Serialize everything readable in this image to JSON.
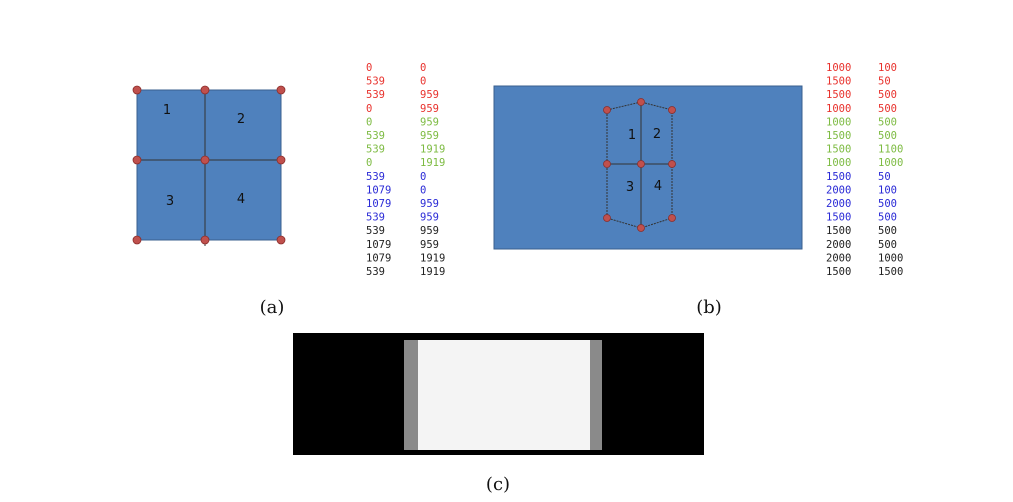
{
  "panel_a": {
    "caption": "(a)",
    "quads": [
      "1",
      "2",
      "3",
      "4"
    ],
    "point_groups": [
      {
        "color": "#e8322d",
        "rows": [
          [
            0,
            0
          ],
          [
            539,
            0
          ],
          [
            539,
            959
          ],
          [
            0,
            959
          ]
        ]
      },
      {
        "color": "#7dbb42",
        "rows": [
          [
            0,
            959
          ],
          [
            539,
            959
          ],
          [
            539,
            1919
          ],
          [
            0,
            1919
          ]
        ]
      },
      {
        "color": "#2a2ad6",
        "rows": [
          [
            539,
            0
          ],
          [
            1079,
            0
          ],
          [
            1079,
            959
          ],
          [
            539,
            959
          ]
        ]
      },
      {
        "color": "#222222",
        "rows": [
          [
            539,
            959
          ],
          [
            1079,
            959
          ],
          [
            1079,
            1919
          ],
          [
            539,
            1919
          ]
        ]
      }
    ]
  },
  "panel_b": {
    "caption": "(b)",
    "quads": [
      "1",
      "2",
      "3",
      "4"
    ],
    "point_groups": [
      {
        "color": "#e8322d",
        "rows": [
          [
            1000,
            100
          ],
          [
            1500,
            50
          ],
          [
            1500,
            500
          ],
          [
            1000,
            500
          ]
        ]
      },
      {
        "color": "#7dbb42",
        "rows": [
          [
            1000,
            500
          ],
          [
            1500,
            500
          ],
          [
            1500,
            1100
          ],
          [
            1000,
            1000
          ]
        ]
      },
      {
        "color": "#2a2ad6",
        "rows": [
          [
            1500,
            50
          ],
          [
            2000,
            100
          ],
          [
            2000,
            500
          ],
          [
            1500,
            500
          ]
        ]
      },
      {
        "color": "#222222",
        "rows": [
          [
            1500,
            500
          ],
          [
            2000,
            500
          ],
          [
            2000,
            1000
          ],
          [
            1500,
            1500
          ]
        ]
      }
    ]
  },
  "panel_c": {
    "caption": "(c)"
  }
}
